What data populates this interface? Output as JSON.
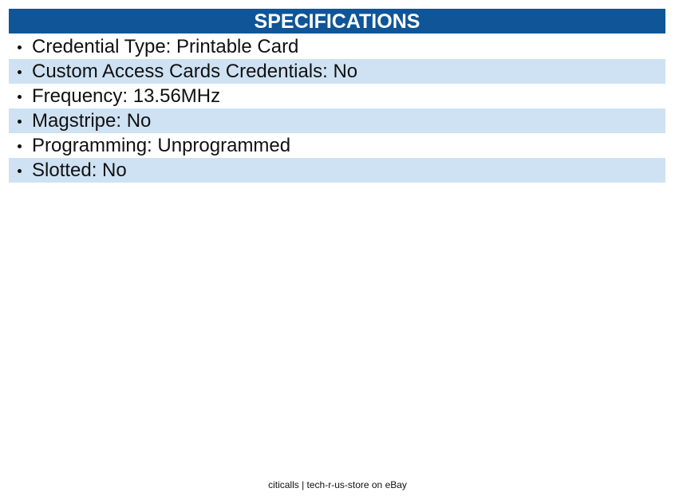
{
  "header": {
    "title": "SPECIFICATIONS"
  },
  "items": [
    "Credential Type: Printable Card",
    "Custom Access Cards Credentials: No",
    "Frequency: 13.56MHz",
    "Magstripe: No",
    "Programming: Unprogrammed",
    "Slotted: No"
  ],
  "footer": {
    "text": "citicalls | tech-r-us-store on eBay"
  }
}
